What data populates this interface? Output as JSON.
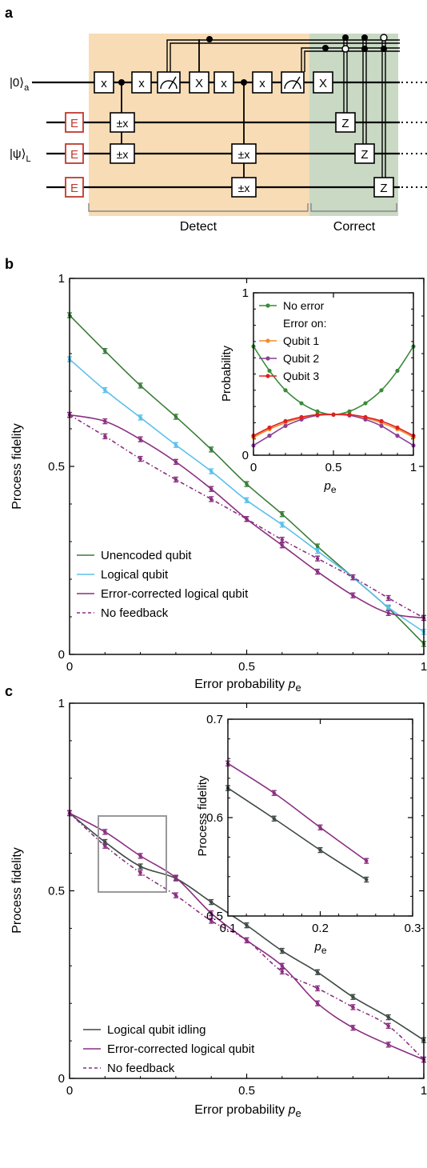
{
  "panels": {
    "a": {
      "label": "a",
      "ket_a": "|0⟩",
      "ket_a_sub": "a",
      "ket_l": "|ψ⟩",
      "ket_l_sub": "L",
      "error_gate": "E",
      "x_gate": "x",
      "X_gate": "X",
      "pm_x_gate": "±x",
      "z_gate": "Z",
      "detect_label": "Detect",
      "correct_label": "Correct",
      "colors": {
        "detect_bg": "#f7dcb5",
        "correct_bg": "#c9d9c4",
        "error_gate": "#c0392b"
      }
    },
    "b": {
      "label": "b"
    },
    "c": {
      "label": "c"
    }
  },
  "chart_data": [
    {
      "id": "b-main",
      "type": "line",
      "xlabel": "Error probability",
      "xlabel_var": "p",
      "xlabel_sub": "e",
      "ylabel": "Process fidelity",
      "xlim": [
        0,
        1
      ],
      "ylim": [
        0,
        1
      ],
      "xticks": [
        "0",
        "0.5",
        "1"
      ],
      "yticks": [
        "0",
        "0.5",
        "1"
      ],
      "legend_position": "bottom-left",
      "x": [
        0,
        0.1,
        0.2,
        0.3,
        0.4,
        0.5,
        0.6,
        0.7,
        0.8,
        0.9,
        1.0
      ],
      "series": [
        {
          "name": "Unencoded qubit",
          "color": "#3a7d3a",
          "style": "solid",
          "values": [
            0.902,
            0.807,
            0.715,
            0.632,
            0.545,
            0.453,
            0.373,
            0.287,
            0.205,
            0.123,
            0.028
          ]
        },
        {
          "name": "Logical qubit",
          "color": "#5bc0eb",
          "style": "solid",
          "values": [
            0.785,
            0.703,
            0.63,
            0.557,
            0.487,
            0.41,
            0.345,
            0.275,
            0.205,
            0.125,
            0.06
          ]
        },
        {
          "name": "Error-corrected logical qubit",
          "color": "#8a2f80",
          "style": "solid",
          "values": [
            0.637,
            0.62,
            0.572,
            0.512,
            0.44,
            0.36,
            0.29,
            0.22,
            0.157,
            0.11,
            0.097
          ]
        },
        {
          "name": "No feedback",
          "color": "#8a2f80",
          "style": "dashed",
          "values": [
            0.637,
            0.58,
            0.52,
            0.465,
            0.413,
            0.36,
            0.305,
            0.255,
            0.205,
            0.15,
            0.097
          ]
        }
      ]
    },
    {
      "id": "b-inset",
      "type": "line",
      "xlabel": "",
      "xlabel_var": "p",
      "xlabel_sub": "e",
      "ylabel": "Probability",
      "xlim": [
        0,
        1
      ],
      "ylim": [
        0,
        1
      ],
      "xticks": [
        "0",
        "0.5",
        "1"
      ],
      "yticks": [
        "0",
        "1"
      ],
      "legend_position": "top",
      "legend_subtitle": "Error on:",
      "x": [
        0,
        0.1,
        0.2,
        0.3,
        0.4,
        0.5,
        0.6,
        0.7,
        0.8,
        0.9,
        1.0
      ],
      "series": [
        {
          "name": "No error",
          "color": "#3a8a3a",
          "values": [
            0.67,
            0.52,
            0.4,
            0.32,
            0.27,
            0.25,
            0.27,
            0.32,
            0.4,
            0.52,
            0.67
          ]
        },
        {
          "name": "Qubit 1",
          "color": "#f08c2a",
          "values": [
            0.11,
            0.16,
            0.2,
            0.23,
            0.25,
            0.25,
            0.25,
            0.23,
            0.2,
            0.16,
            0.11
          ]
        },
        {
          "name": "Qubit 2",
          "color": "#8a3f96",
          "values": [
            0.06,
            0.12,
            0.18,
            0.22,
            0.245,
            0.25,
            0.245,
            0.22,
            0.18,
            0.12,
            0.06
          ]
        },
        {
          "name": "Qubit 3",
          "color": "#e02020",
          "values": [
            0.12,
            0.17,
            0.21,
            0.235,
            0.25,
            0.25,
            0.25,
            0.235,
            0.21,
            0.17,
            0.12
          ]
        }
      ]
    },
    {
      "id": "c-main",
      "type": "line",
      "xlabel": "Error probability",
      "xlabel_var": "p",
      "xlabel_sub": "e",
      "ylabel": "Process fidelity",
      "xlim": [
        0,
        1
      ],
      "ylim": [
        0,
        1
      ],
      "xticks": [
        "0",
        "0.5",
        "1"
      ],
      "yticks": [
        "0",
        "0.5",
        "1"
      ],
      "legend_position": "bottom-left",
      "x": [
        0,
        0.1,
        0.2,
        0.3,
        0.4,
        0.5,
        0.6,
        0.7,
        0.8,
        0.9,
        1.0
      ],
      "series": [
        {
          "name": "Logical qubit idling",
          "color": "#3f4a45",
          "style": "solid",
          "values": [
            0.707,
            0.63,
            0.565,
            0.533,
            0.47,
            0.408,
            0.34,
            0.283,
            0.217,
            0.163,
            0.102
          ]
        },
        {
          "name": "Error-corrected logical qubit",
          "color": "#8a2f80",
          "style": "solid",
          "values": [
            0.707,
            0.657,
            0.593,
            0.535,
            0.44,
            0.368,
            0.3,
            0.2,
            0.135,
            0.09,
            0.05
          ]
        },
        {
          "name": "No feedback",
          "color": "#8a2f80",
          "style": "dashed",
          "values": [
            0.707,
            0.62,
            0.548,
            0.488,
            0.42,
            0.368,
            0.285,
            0.24,
            0.19,
            0.14,
            0.05
          ]
        }
      ]
    },
    {
      "id": "c-inset",
      "type": "line",
      "xlabel": "",
      "xlabel_var": "p",
      "xlabel_sub": "e",
      "ylabel": "Process fidelity",
      "xlim": [
        0.1,
        0.3
      ],
      "ylim": [
        0.5,
        0.7
      ],
      "xticks": [
        "0.1",
        "0.2",
        "0.3"
      ],
      "yticks": [
        "0.5",
        "0.6",
        "0.7"
      ],
      "x": [
        0.1,
        0.15,
        0.2,
        0.25
      ],
      "series": [
        {
          "name": "Logical qubit idling",
          "color": "#3f4a45",
          "values": [
            0.63,
            0.599,
            0.567,
            0.537
          ]
        },
        {
          "name": "Error-corrected logical qubit",
          "color": "#8a2f80",
          "values": [
            0.655,
            0.625,
            0.59,
            0.556
          ]
        }
      ]
    }
  ]
}
